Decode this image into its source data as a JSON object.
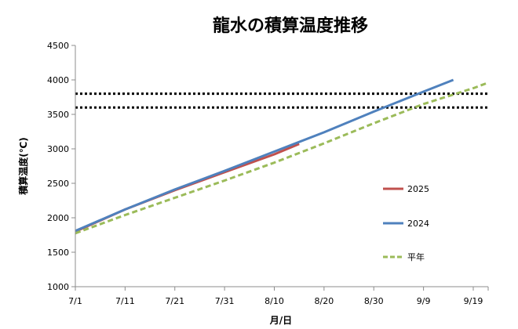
{
  "chart_data": {
    "type": "line",
    "title": "龍水の積算温度推移",
    "xlabel": "月/日",
    "ylabel": "積算温度(℃)",
    "ylim": [
      1000,
      4500
    ],
    "yticks": [
      "1000",
      "1500",
      "2000",
      "2500",
      "3000",
      "3500",
      "4000",
      "4500"
    ],
    "xlim": [
      "7/1",
      "9/22"
    ],
    "xticks": [
      "7/1",
      "7/11",
      "7/21",
      "7/31",
      "8/10",
      "8/20",
      "8/30",
      "9/9",
      "9/19"
    ],
    "grid": false,
    "legend_position": "right",
    "reference_lines": [
      3800,
      3600
    ],
    "series": [
      {
        "name": "2025",
        "color": "#c0504d",
        "style": "solid",
        "x": [
          "7/1",
          "7/11",
          "7/21",
          "7/31",
          "8/10",
          "8/15"
        ],
        "y": [
          1800,
          2120,
          2400,
          2660,
          2920,
          3070
        ]
      },
      {
        "name": "2024",
        "color": "#4f81bd",
        "style": "solid",
        "x": [
          "7/1",
          "7/11",
          "7/21",
          "7/31",
          "8/10",
          "8/20",
          "8/30",
          "9/9",
          "9/15"
        ],
        "y": [
          1810,
          2120,
          2410,
          2680,
          2960,
          3240,
          3540,
          3830,
          4000
        ]
      },
      {
        "name": "平年",
        "color": "#9bbb59",
        "style": "dashed",
        "x": [
          "7/1",
          "7/11",
          "7/21",
          "7/31",
          "8/10",
          "8/20",
          "8/30",
          "9/9",
          "9/19",
          "9/22"
        ],
        "y": [
          1775,
          2040,
          2290,
          2540,
          2800,
          3080,
          3370,
          3650,
          3880,
          3960
        ]
      }
    ]
  }
}
